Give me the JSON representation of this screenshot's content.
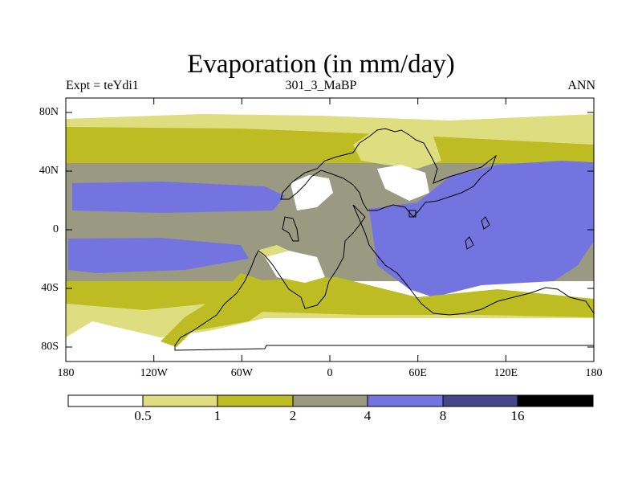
{
  "title": "Evaporation (in mm/day)",
  "subtitle": {
    "left": "Expt = teYdi1",
    "center": "301_3_MaBP",
    "right": "ANN"
  },
  "map": {
    "lat_ticks": [
      "80N",
      "40N",
      "0",
      "40S",
      "80S"
    ],
    "lon_ticks": [
      "180",
      "120W",
      "60W",
      "0",
      "60E",
      "120E",
      "180"
    ]
  },
  "colorbar": {
    "labels": [
      "0.5",
      "1",
      "2",
      "4",
      "8",
      "16"
    ],
    "colors": [
      "#ffffff",
      "#dede80",
      "#bdbd23",
      "#9a9a82",
      "#7474e0",
      "#45458c",
      "#000000"
    ]
  },
  "colors": {
    "white": "#ffffff",
    "light_yellow": "#dede80",
    "olive": "#bdbd23",
    "grey": "#9a9a82",
    "blue": "#7474e0",
    "dark_blue": "#45458c",
    "black": "#000000"
  }
}
